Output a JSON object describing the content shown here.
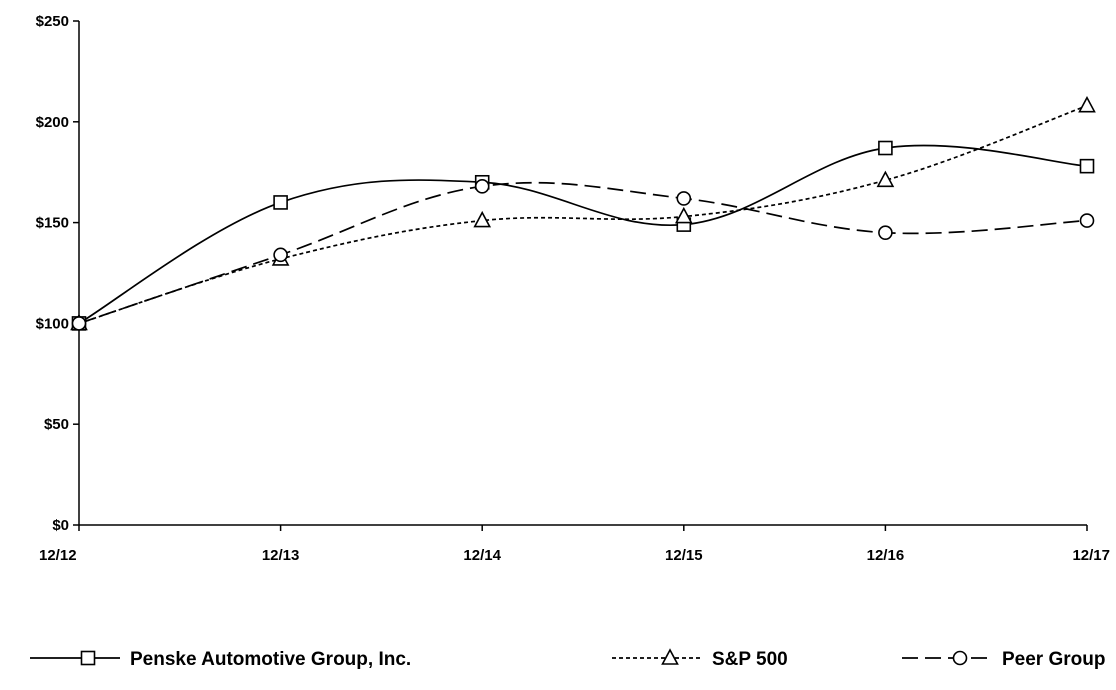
{
  "chart_data": {
    "type": "line",
    "categories": [
      "12/12",
      "12/13",
      "12/14",
      "12/15",
      "12/16",
      "12/17"
    ],
    "y_ticks": [
      "$0",
      "$50",
      "$100",
      "$150",
      "$200",
      "$250"
    ],
    "ylim": [
      0,
      250
    ],
    "grid": false,
    "legend_position": "bottom",
    "series": [
      {
        "name": "Penske Automotive Group, Inc.",
        "values": [
          100,
          160,
          170,
          149,
          187,
          178
        ],
        "line_style": "solid",
        "marker": "square",
        "color": "#000000"
      },
      {
        "name": "S&P 500",
        "values": [
          100,
          132,
          151,
          153,
          171,
          208
        ],
        "line_style": "dotted",
        "marker": "triangle",
        "color": "#000000"
      },
      {
        "name": "Peer Group",
        "values": [
          100,
          134,
          168,
          162,
          145,
          151
        ],
        "line_style": "dashed",
        "marker": "circle",
        "color": "#000000"
      }
    ]
  }
}
